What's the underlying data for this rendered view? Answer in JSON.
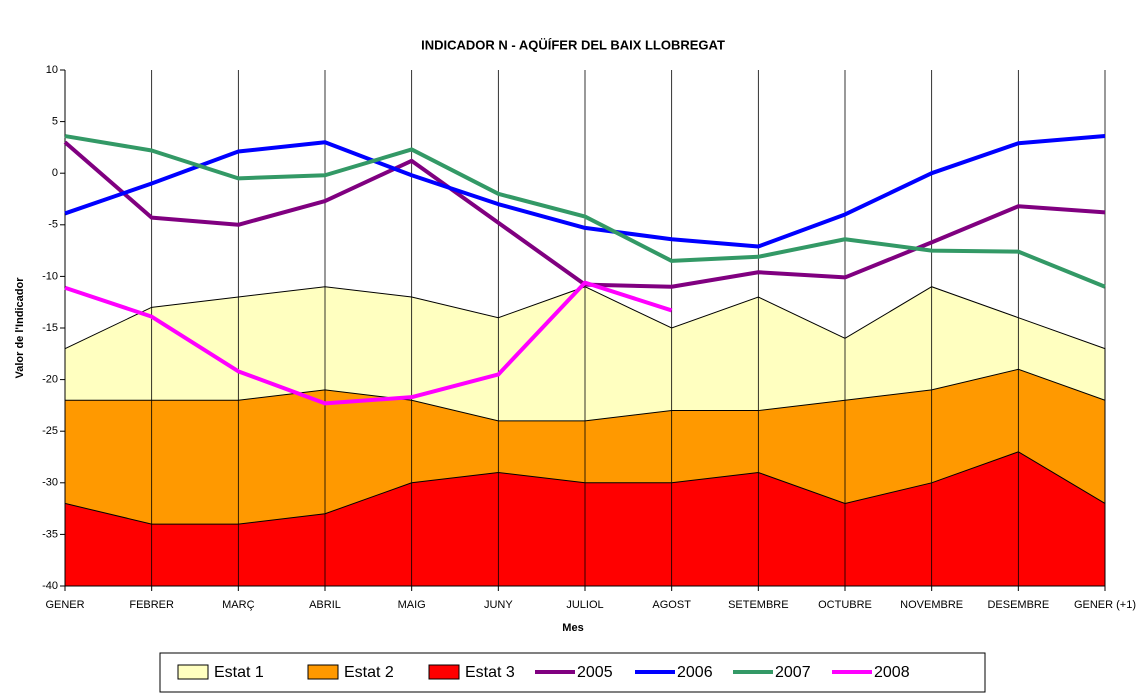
{
  "chart_data": {
    "type": "line",
    "title": "INDICADOR N - AQÜÍFER DEL BAIX LLOBREGAT",
    "y_label": "Valor de l'Indicador",
    "x_label": "Mes",
    "categories": [
      "GENER",
      "FEBRER",
      "MARÇ",
      "ABRIL",
      "MAIG",
      "JUNY",
      "JULIOL",
      "AGOST",
      "SETEMBRE",
      "OCTUBRE",
      "NOVEMBRE",
      "DESEMBRE",
      "GENER (+1)"
    ],
    "ylim": [
      -40,
      10
    ],
    "yticks": [
      -40,
      -35,
      -30,
      -25,
      -20,
      -15,
      -10,
      -5,
      0,
      5,
      10
    ],
    "vertical_grid": true,
    "legend": "bottom",
    "series": [
      {
        "name": "Estat 1",
        "type": "area",
        "color": "#ffffc0",
        "values": [
          -17,
          -13,
          -12,
          -11,
          -12,
          -14,
          -11,
          -15,
          -12,
          -16,
          -11,
          -14,
          -17
        ]
      },
      {
        "name": "Estat 2",
        "type": "area",
        "color": "#ff9900",
        "values": [
          -22,
          -22,
          -22,
          -21,
          -22,
          -24,
          -24,
          -23,
          -23,
          -22,
          -21,
          -19,
          -22
        ]
      },
      {
        "name": "Estat 3",
        "type": "area",
        "color": "#ff0000",
        "values": [
          -32,
          -34,
          -34,
          -33,
          -30,
          -29,
          -30,
          -30,
          -29,
          -32,
          -30,
          -27,
          -32
        ]
      },
      {
        "name": "2005",
        "type": "line",
        "color": "#800080",
        "values": [
          3,
          -4.3,
          -5,
          -2.7,
          1.2,
          -4.8,
          -10.8,
          -11,
          -9.6,
          -10.1,
          -6.7,
          -3.2,
          -3.8
        ]
      },
      {
        "name": "2006",
        "type": "line",
        "color": "#0000ff",
        "values": [
          -3.9,
          -1,
          2.1,
          3,
          -0.2,
          -3,
          -5.3,
          -6.4,
          -7.1,
          -4,
          0,
          2.9,
          3.6
        ]
      },
      {
        "name": "2007",
        "type": "line",
        "color": "#339966",
        "values": [
          3.6,
          2.2,
          -0.5,
          -0.2,
          2.3,
          -2,
          -4.2,
          -8.5,
          -8.1,
          -6.4,
          -7.5,
          -7.6,
          -11
        ]
      },
      {
        "name": "2008",
        "type": "line",
        "color": "#ff00ff",
        "values": [
          -11.1,
          -13.9,
          -19.2,
          -22.3,
          -21.7,
          -19.5,
          -10.6,
          -13.3,
          null,
          null,
          null,
          null,
          null
        ]
      }
    ]
  }
}
